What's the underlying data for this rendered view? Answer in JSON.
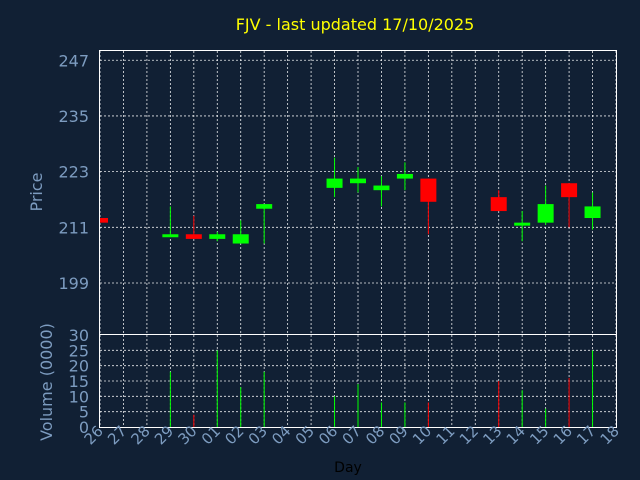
{
  "chart_data": {
    "type": "candlestick",
    "title": "FJV - last updated 17/10/2025",
    "price_panel": {
      "ylabel": "Price",
      "ylim": [
        188,
        249
      ],
      "yticks": [
        199,
        211,
        223,
        235,
        247
      ]
    },
    "volume_panel": {
      "ylabel": "Volume (0000)",
      "ylim": [
        0,
        30
      ],
      "yticks": [
        0,
        5,
        10,
        15,
        20,
        25,
        30
      ]
    },
    "xlabel": "Day",
    "x_ticks": [
      "26",
      "27",
      "28",
      "29",
      "30",
      "01",
      "02",
      "03",
      "04",
      "05",
      "06",
      "07",
      "08",
      "09",
      "10",
      "11",
      "12",
      "13",
      "14",
      "15",
      "16",
      "17",
      "18"
    ],
    "grid": true,
    "up_color": "#00ff00",
    "down_color": "#ff0000",
    "candles": [
      {
        "day": "26",
        "open": 213,
        "close": 212,
        "high": 213,
        "low": 212,
        "volume": 0
      },
      {
        "day": "29",
        "open": 209,
        "close": 209.5,
        "high": 215.5,
        "low": 209,
        "volume": 18
      },
      {
        "day": "30",
        "open": 209.5,
        "close": 208.5,
        "high": 213.5,
        "low": 208.5,
        "volume": 4
      },
      {
        "day": "01",
        "open": 208.5,
        "close": 209.5,
        "high": 210,
        "low": 208,
        "volume": 25
      },
      {
        "day": "02",
        "open": 207.5,
        "close": 209.5,
        "high": 212.5,
        "low": 207.5,
        "volume": 13
      },
      {
        "day": "03",
        "open": 215,
        "close": 216,
        "high": 216,
        "low": 207.5,
        "volume": 18
      },
      {
        "day": "06",
        "open": 219.5,
        "close": 221.5,
        "high": 226,
        "low": 217.5,
        "volume": 10
      },
      {
        "day": "07",
        "open": 220.5,
        "close": 221.5,
        "high": 224,
        "low": 218.5,
        "volume": 14
      },
      {
        "day": "08",
        "open": 219,
        "close": 220,
        "high": 222,
        "low": 215.5,
        "volume": 8
      },
      {
        "day": "09",
        "open": 221.5,
        "close": 222.5,
        "high": 225,
        "low": 219,
        "volume": 8
      },
      {
        "day": "10",
        "open": 221.5,
        "close": 216.5,
        "high": 221.5,
        "low": 209.5,
        "volume": 8
      },
      {
        "day": "13",
        "open": 217.5,
        "close": 214.5,
        "high": 219,
        "low": 214.5,
        "volume": 15
      },
      {
        "day": "14",
        "open": 211.5,
        "close": 212,
        "high": 214.5,
        "low": 208,
        "volume": 12
      },
      {
        "day": "15",
        "open": 212,
        "close": 216,
        "high": 220,
        "low": 211.5,
        "volume": 6
      },
      {
        "day": "16",
        "open": 220.5,
        "close": 217.5,
        "high": 220.5,
        "low": 211,
        "volume": 16
      },
      {
        "day": "17",
        "open": 213,
        "close": 215.5,
        "high": 218.5,
        "low": 210.5,
        "volume": 25
      }
    ]
  }
}
